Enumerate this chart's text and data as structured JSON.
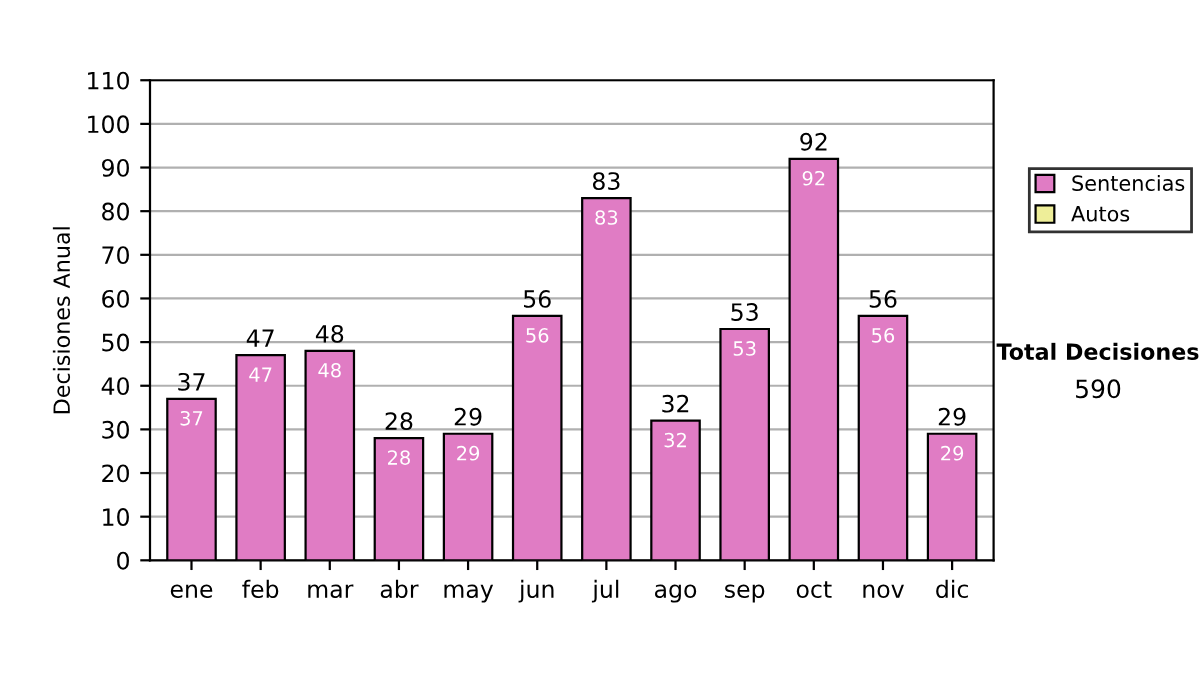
{
  "chart_data": {
    "type": "bar",
    "stacked": true,
    "ylabel": "Decisiones Anual",
    "categories": [
      "ene",
      "feb",
      "mar",
      "abr",
      "may",
      "jun",
      "jul",
      "ago",
      "sep",
      "oct",
      "nov",
      "dic"
    ],
    "series": [
      {
        "name": "Sentencias",
        "color": "#e07cc4",
        "values": [
          37,
          47,
          48,
          28,
          29,
          56,
          83,
          32,
          53,
          92,
          56,
          29
        ],
        "value_labels": [
          "37",
          "47",
          "48",
          "28",
          "29",
          "56",
          "83",
          "32",
          "53",
          "92",
          "56",
          "29"
        ]
      },
      {
        "name": "Autos",
        "color": "#eeee99",
        "values": [
          null,
          null,
          null,
          null,
          null,
          null,
          null,
          null,
          null,
          null,
          null,
          null
        ]
      }
    ],
    "totals": [
      "37",
      "47",
      "48",
      "28",
      "29",
      "56",
      "83",
      "32",
      "53",
      "92",
      "56",
      "29"
    ],
    "ylim": [
      0,
      110
    ],
    "yticks": [
      0,
      10,
      20,
      30,
      40,
      50,
      60,
      70,
      80,
      90,
      100,
      110
    ],
    "grid": "y",
    "legend": "right",
    "annotations": [
      "Total Decisiones",
      "590"
    ]
  }
}
